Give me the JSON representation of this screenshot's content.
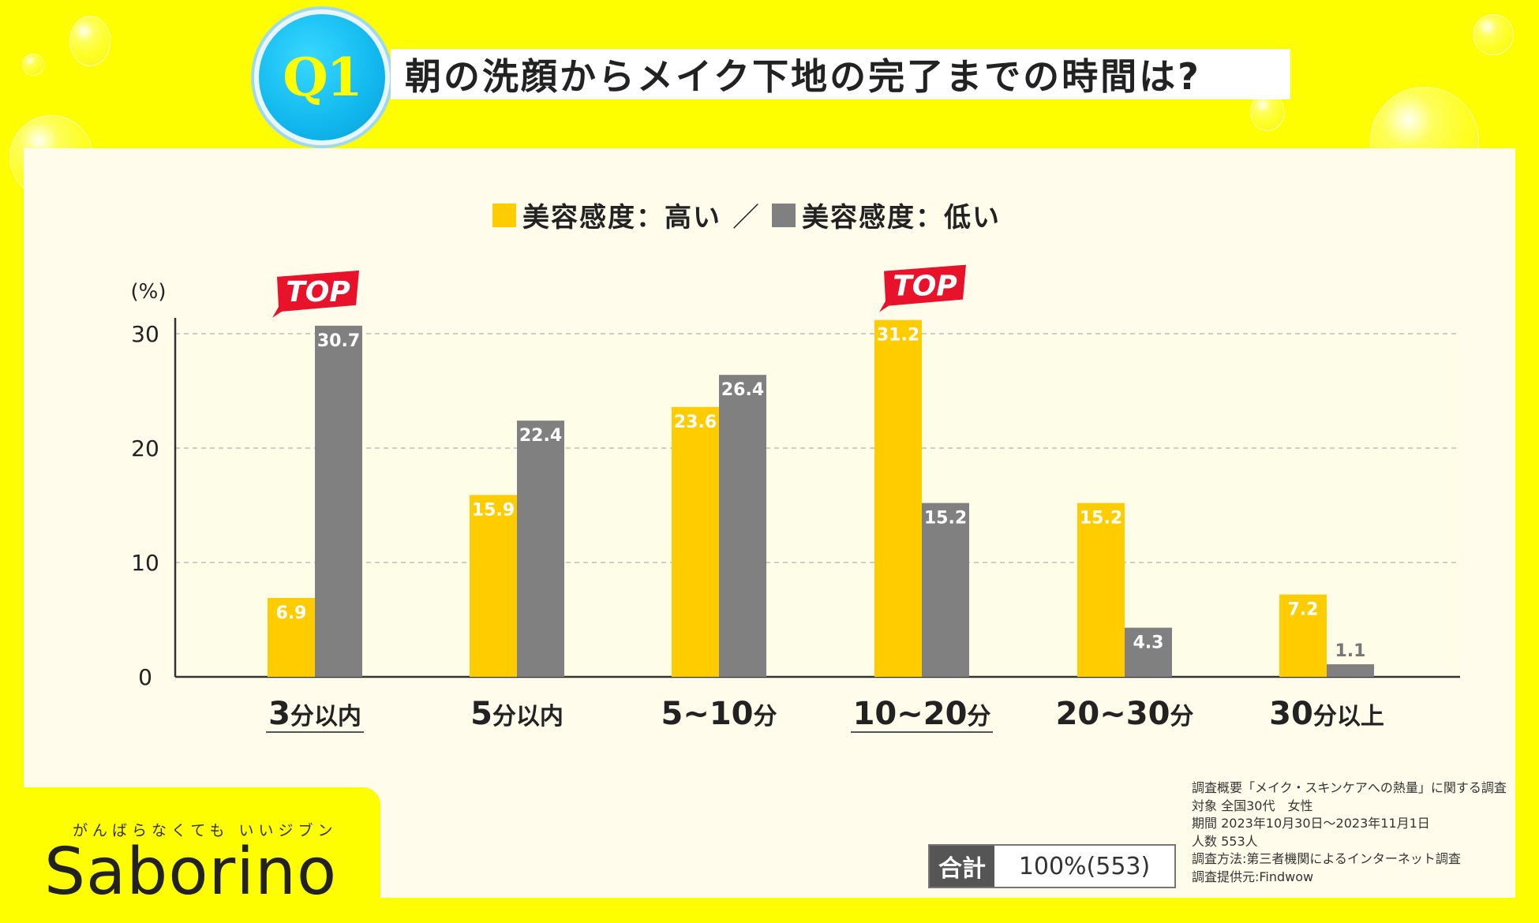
{
  "header": {
    "badge": "Q1",
    "title": "朝の洗顔からメイク下地の完了までの時間は?"
  },
  "legend": {
    "high_label": "美容感度：高い",
    "separator": "／",
    "low_label": "美容感度：低い"
  },
  "colors": {
    "high": "#FFCC00",
    "low": "#808080",
    "top_badge": "#E8132A",
    "background": "#FEFE00"
  },
  "chart_data": {
    "type": "bar",
    "title": "朝の洗顔からメイク下地の完了までの時間は?",
    "ylabel": "(%)",
    "xlabel": "",
    "ylim": [
      0,
      30
    ],
    "yticks": [
      "0",
      "10",
      "20",
      "30"
    ],
    "grid": true,
    "legend": "top-center",
    "categories": [
      {
        "num": "3",
        "unit": "分以内",
        "top": true
      },
      {
        "num": "5",
        "unit": "分以内",
        "top": false
      },
      {
        "num": "5~10",
        "unit": "分",
        "top": false
      },
      {
        "num": "10~20",
        "unit": "分",
        "top": true
      },
      {
        "num": "20~30",
        "unit": "分",
        "top": false
      },
      {
        "num": "30",
        "unit": "分以上",
        "top": false
      }
    ],
    "series": [
      {
        "name": "美容感度：高い",
        "values": [
          6.9,
          15.9,
          23.6,
          31.2,
          15.2,
          7.2
        ]
      },
      {
        "name": "美容感度：低い",
        "values": [
          30.7,
          22.4,
          26.4,
          15.2,
          4.3,
          1.1
        ]
      }
    ],
    "top_label": "TOP"
  },
  "total": {
    "label": "合計",
    "value": "100%(553)"
  },
  "notes": [
    "調査概要「メイク・スキンケアへの熱量」に関する調査",
    "対象 全国30代　女性",
    "期間 2023年10月30日～2023年11月1日",
    "人数 553人",
    "調査方法:第三者機関によるインターネット調査",
    "調査提供元:Findwow"
  ],
  "brand": {
    "tagline": "がんばらなくても いいジブン",
    "name": "Saborino"
  }
}
